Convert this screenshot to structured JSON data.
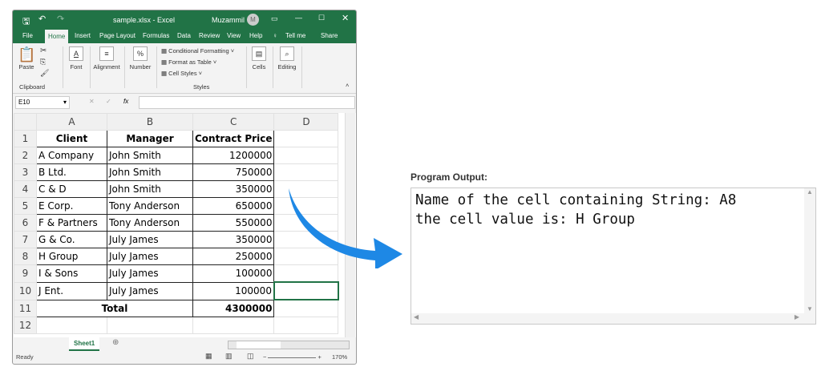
{
  "excel": {
    "title": "sample.xlsx  -  Excel",
    "user": "Muzammil",
    "avatar": "M",
    "tabs": [
      "File",
      "Home",
      "Insert",
      "Page Layout",
      "Formulas",
      "Data",
      "Review",
      "View",
      "Help",
      "Tell me",
      "Share"
    ],
    "ribbon": {
      "paste": "Paste",
      "clipboard": "Clipboard",
      "font": "Font",
      "alignment": "Alignment",
      "number": "Number",
      "conditional": "Conditional Formatting ˅",
      "format_table": "Format as Table ˅",
      "cell_styles": "Cell Styles ˅",
      "styles": "Styles",
      "cells": "Cells",
      "editing": "Editing"
    },
    "name_box": "E10",
    "formula": "",
    "columns": [
      "A",
      "B",
      "C",
      "D"
    ],
    "rows": [
      [
        "Client",
        "Manager",
        "Contract Price"
      ],
      [
        "A Company",
        "John Smith",
        "1200000"
      ],
      [
        "B Ltd.",
        "John Smith",
        "750000"
      ],
      [
        "C & D",
        "John Smith",
        "350000"
      ],
      [
        "E Corp.",
        "Tony Anderson",
        "650000"
      ],
      [
        "F & Partners",
        "Tony Anderson",
        "550000"
      ],
      [
        "G & Co.",
        "July James",
        "350000"
      ],
      [
        "H Group",
        "July James",
        "250000"
      ],
      [
        "I & Sons",
        "July James",
        "100000"
      ],
      [
        "J Ent.",
        "July James",
        "100000"
      ],
      [
        "Total",
        "",
        "4300000"
      ]
    ],
    "sheet": "Sheet1",
    "status": "Ready",
    "zoom": "170%"
  },
  "output": {
    "label": "Program Output:",
    "line1": "Name of the cell containing String: A8",
    "line2": "the cell value is: H Group"
  },
  "colors": {
    "excel_green": "#217346",
    "arrow": "#1e88e5"
  }
}
